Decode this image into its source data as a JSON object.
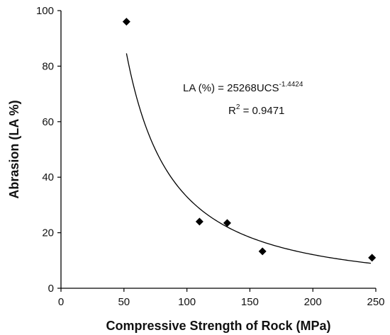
{
  "chart_data": {
    "type": "scatter",
    "xlabel": "Compressive Strength of Rock (MPa)",
    "ylabel": "Abrasion (LA %)",
    "xlim": [
      0,
      250
    ],
    "ylim": [
      0,
      100
    ],
    "x_ticks": [
      0,
      50,
      100,
      150,
      200,
      250
    ],
    "y_ticks": [
      0,
      20,
      40,
      60,
      80,
      100
    ],
    "grid": false,
    "marker": "diamond",
    "color": "#000000",
    "points": [
      {
        "x": 52,
        "y": 96
      },
      {
        "x": 110,
        "y": 24
      },
      {
        "x": 132,
        "y": 23.5
      },
      {
        "x": 160,
        "y": 13.3
      },
      {
        "x": 247,
        "y": 11
      }
    ],
    "trendline": {
      "type": "power",
      "coefficient": 25268,
      "exponent": -1.4424,
      "x_range": [
        52,
        246
      ]
    },
    "annotations": {
      "equation_main": "LA (%) = 25268UCS",
      "equation_exp": "-1.4424",
      "r2_main": "R",
      "r2_sup": "2",
      "r2_value": " = 0.9471"
    }
  }
}
